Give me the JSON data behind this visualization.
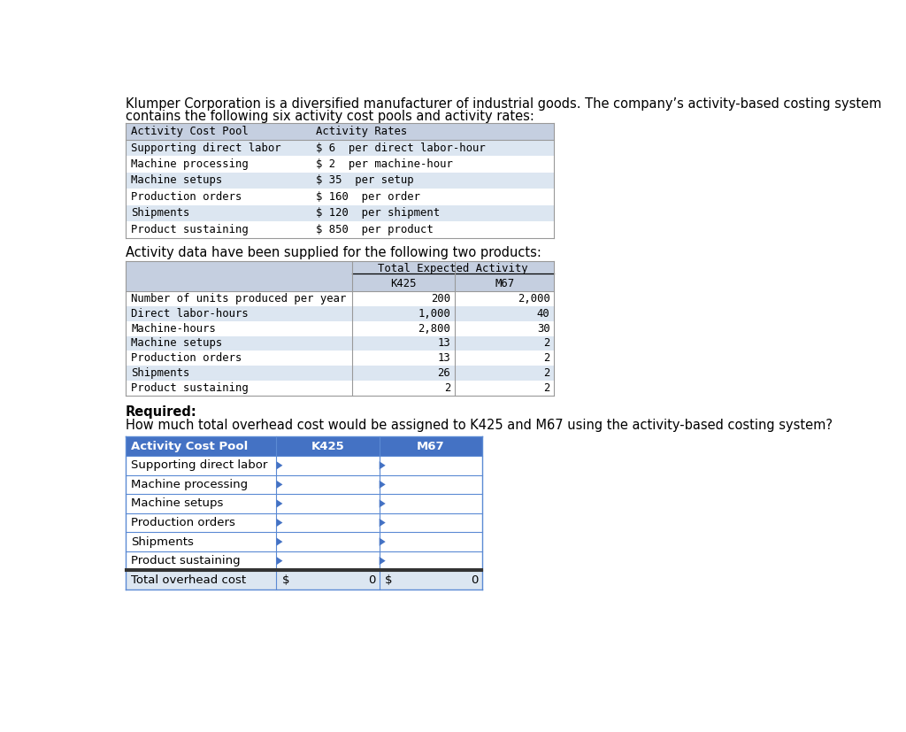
{
  "intro_line1": "Klumper Corporation is a diversified manufacturer of industrial goods. The company’s activity-based costing system",
  "intro_line2": "contains the following six activity cost pools and activity rates:",
  "table1_header": [
    "Activity Cost Pool",
    "Activity Rates"
  ],
  "table1_rows": [
    [
      "Supporting direct labor",
      "$ 6  per direct labor-hour"
    ],
    [
      "Machine processing",
      "$ 2  per machine-hour"
    ],
    [
      "Machine setups",
      "$ 35  per setup"
    ],
    [
      "Production orders",
      "$ 160  per order"
    ],
    [
      "Shipments",
      "$ 120  per shipment"
    ],
    [
      "Product sustaining",
      "$ 850  per product"
    ]
  ],
  "mid_text": "Activity data have been supplied for the following two products:",
  "table2_header_top": "Total Expected Activity",
  "table2_rows": [
    [
      "Number of units produced per year",
      "200",
      "2,000"
    ],
    [
      "Direct labor-hours",
      "1,000",
      "40"
    ],
    [
      "Machine-hours",
      "2,800",
      "30"
    ],
    [
      "Machine setups",
      "13",
      "2"
    ],
    [
      "Production orders",
      "13",
      "2"
    ],
    [
      "Shipments",
      "26",
      "2"
    ],
    [
      "Product sustaining",
      "2",
      "2"
    ]
  ],
  "required_label": "Required:",
  "required_text": "How much total overhead cost would be assigned to K425 and M67 using the activity-based costing system?",
  "table3_header": [
    "Activity Cost Pool",
    "K425",
    "M67"
  ],
  "table3_rows": [
    [
      "Supporting direct labor",
      "",
      ""
    ],
    [
      "Machine processing",
      "",
      ""
    ],
    [
      "Machine setups",
      "",
      ""
    ],
    [
      "Production orders",
      "",
      ""
    ],
    [
      "Shipments",
      "",
      ""
    ],
    [
      "Product sustaining",
      "",
      ""
    ]
  ],
  "table3_total_label": "Total overhead cost",
  "table3_total_k425": [
    "$",
    "0"
  ],
  "table3_total_m67": [
    "$",
    "0"
  ],
  "t1_header_bg": "#c5cfe0",
  "t1_row_bg_odd": "#dce6f1",
  "t1_row_bg_even": "#ffffff",
  "t2_header_bg": "#c5cfe0",
  "t2_row_bg_odd": "#ffffff",
  "t2_row_bg_even": "#dce6f1",
  "t3_header_bg": "#4472c4",
  "t3_header_fg": "#ffffff",
  "t3_row_bg": "#ffffff",
  "t3_total_bg": "#dce6f1",
  "t3_border": "#5b8ad4",
  "bg_color": "#ffffff",
  "mono_font": "DejaVu Sans Mono",
  "sans_font": "DejaVu Sans"
}
